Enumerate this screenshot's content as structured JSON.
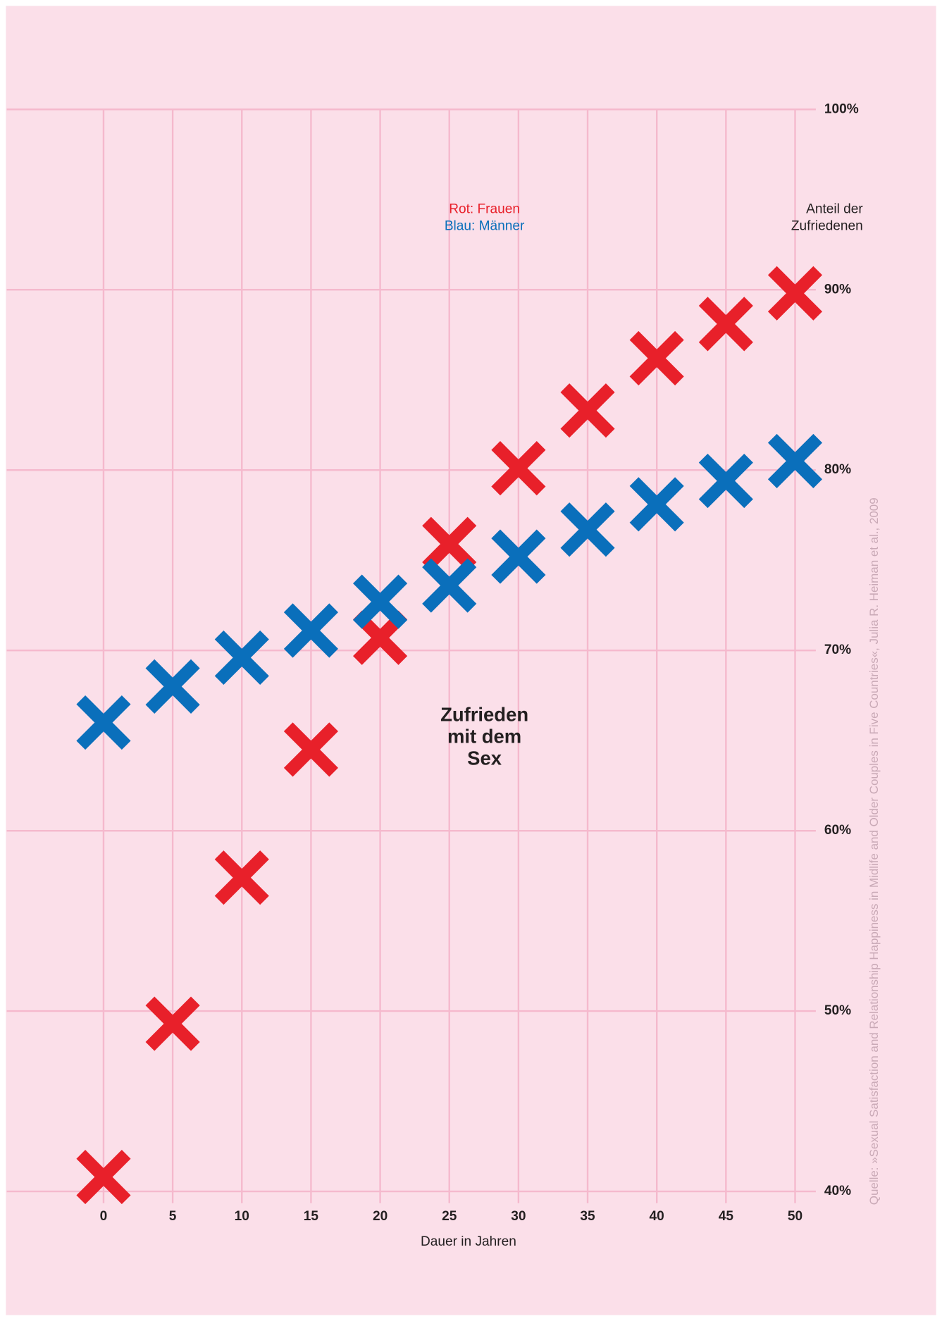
{
  "chart_data": {
    "type": "scatter",
    "marker": "x",
    "legend": [
      "Rot: Frauen",
      "Blau: Männer"
    ],
    "ylabel": [
      "Anteil der",
      "Zufriedenen"
    ],
    "xlabel": "Dauer in Jahren",
    "annotation": [
      "Zufrieden",
      "mit dem",
      "Sex"
    ],
    "source": "Quelle: »Sexual Satisfaction and Relationship Happiness in Midlife and Older Couples in Five Countries«, Julia R. Heiman et al., 2009",
    "grid": true,
    "x": [
      0,
      5,
      10,
      15,
      20,
      25,
      30,
      35,
      40,
      45,
      50
    ],
    "series": [
      {
        "name": "Frauen",
        "color": "#e8202a",
        "values": [
          40.8,
          49.3,
          57.4,
          64.5,
          70.7,
          75.9,
          80.1,
          83.3,
          86.2,
          88.1,
          89.8
        ]
      },
      {
        "name": "Männer",
        "color": "#0a6fbb",
        "values": [
          66.0,
          68.0,
          69.6,
          71.1,
          72.7,
          73.6,
          75.2,
          76.7,
          78.1,
          79.4,
          80.5
        ]
      }
    ],
    "xlim": [
      -7,
      51.5
    ],
    "xticks": [
      0,
      5,
      10,
      15,
      20,
      25,
      30,
      35,
      40,
      45,
      50
    ],
    "ylim": [
      40,
      100
    ],
    "yticks": [
      {
        "value": 40,
        "label": "40%"
      },
      {
        "value": 50,
        "label": "50%"
      },
      {
        "value": 60,
        "label": "60%"
      },
      {
        "value": 70,
        "label": "70%"
      },
      {
        "value": 80,
        "label": "80%"
      },
      {
        "value": 90,
        "label": "90%"
      },
      {
        "value": 100,
        "label": "100%"
      }
    ]
  }
}
